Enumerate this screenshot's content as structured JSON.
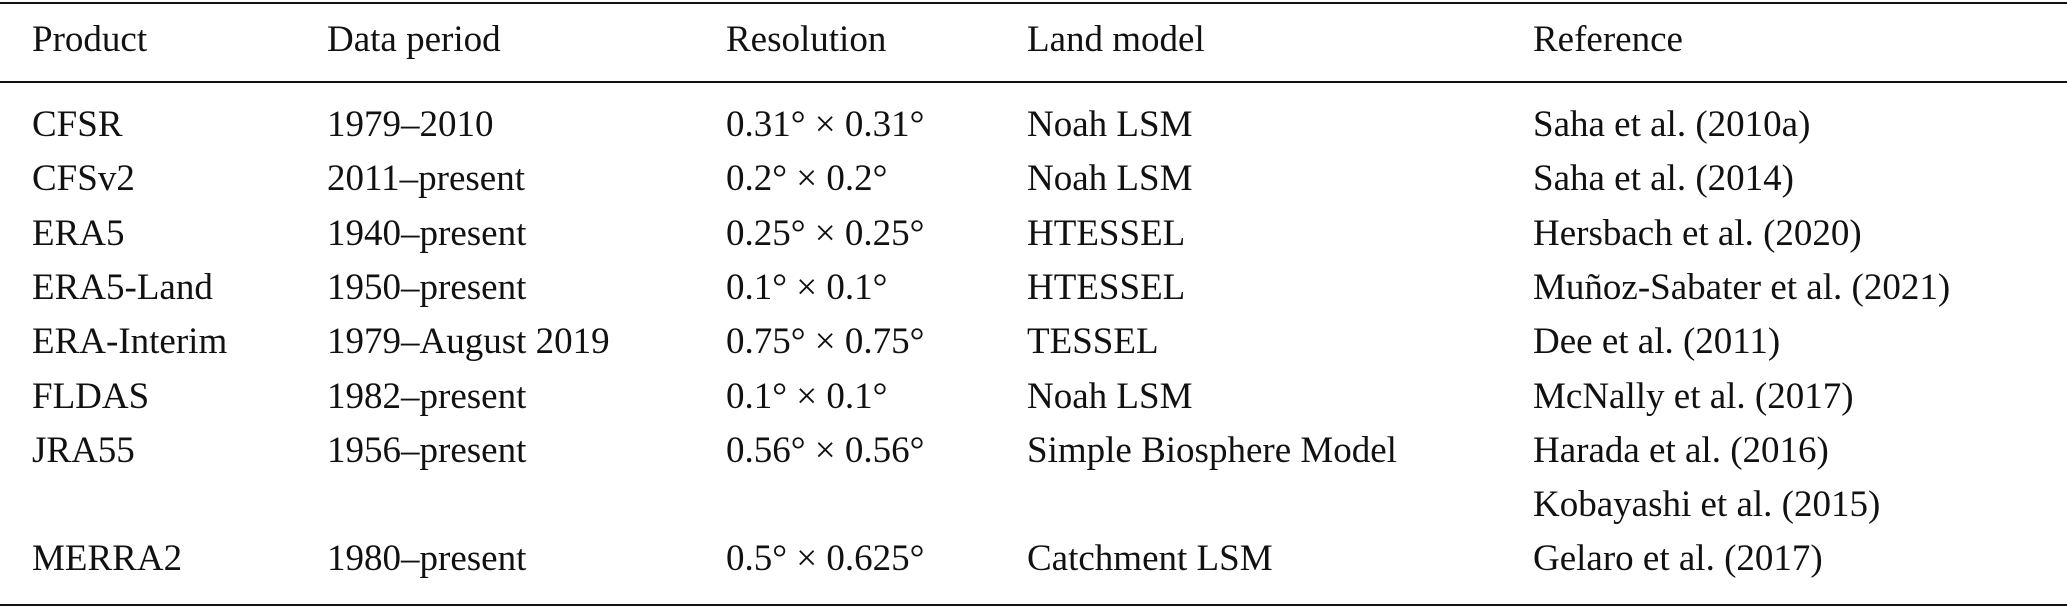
{
  "table": {
    "header": [
      "Product",
      "Data period",
      "Resolution",
      "Land model",
      "Reference"
    ],
    "rows": [
      [
        "CFSR",
        "1979–2010",
        "0.31° × 0.31°",
        "Noah LSM",
        [
          "Saha et al. (2010a)"
        ]
      ],
      [
        "CFSv2",
        "2011–present",
        "0.2° × 0.2°",
        "Noah LSM",
        [
          "Saha et al. (2014)"
        ]
      ],
      [
        "ERA5",
        "1940–present",
        "0.25° × 0.25°",
        "HTESSEL",
        [
          "Hersbach et al. (2020)"
        ]
      ],
      [
        "ERA5-Land",
        "1950–present",
        "0.1° × 0.1°",
        "HTESSEL",
        [
          "Muñoz-Sabater et al. (2021)"
        ]
      ],
      [
        "ERA-Interim",
        "1979–August 2019",
        "0.75° × 0.75°",
        "TESSEL",
        [
          "Dee et al. (2011)"
        ]
      ],
      [
        "FLDAS",
        "1982–present",
        "0.1° × 0.1°",
        "Noah LSM",
        [
          "McNally et al. (2017)"
        ]
      ],
      [
        "JRA55",
        "1956–present",
        "0.56° × 0.56°",
        "Simple Biosphere Model",
        [
          "Harada et al. (2016)",
          "Kobayashi et al. (2015)"
        ]
      ],
      [
        "MERRA2",
        "1980–present",
        "0.5° × 0.625°",
        "Catchment LSM",
        [
          "Gelaro et al. (2017)"
        ]
      ]
    ]
  }
}
